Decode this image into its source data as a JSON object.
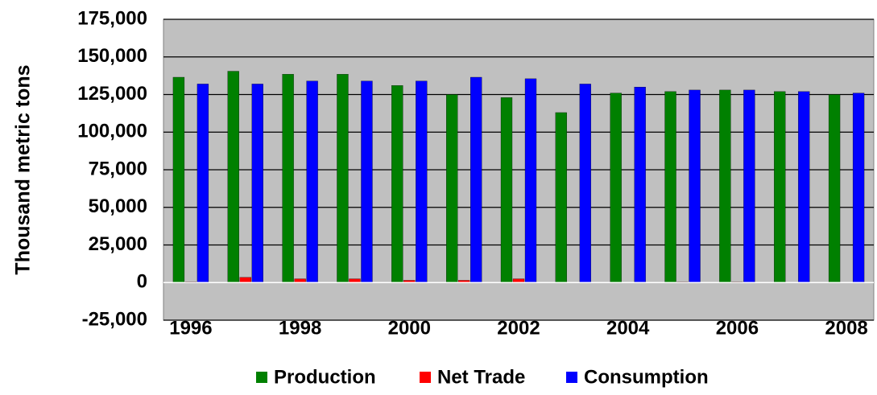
{
  "chart_data": {
    "type": "bar",
    "y_label": "Thousand metric tons",
    "categories": [
      "1996",
      null,
      "1998",
      null,
      "2000",
      null,
      "2002",
      null,
      "2004",
      null,
      "2006",
      null,
      "2008"
    ],
    "series": [
      {
        "name": "Production",
        "color": "#008000",
        "values": [
          136500,
          140500,
          138500,
          138500,
          131000,
          125000,
          123000,
          113000,
          126000,
          127000,
          128000,
          127000,
          125000
        ]
      },
      {
        "name": "Net Trade",
        "color": "#ff0000",
        "values": [
          500,
          3500,
          2500,
          2500,
          1500,
          1500,
          2500,
          0,
          0,
          500,
          500,
          0,
          0
        ]
      },
      {
        "name": "Consumption",
        "color": "#0000ff",
        "values": [
          132000,
          132000,
          134000,
          134000,
          134000,
          136500,
          135500,
          132000,
          130000,
          128000,
          128000,
          127000,
          126000
        ]
      }
    ],
    "ylim": [
      -25000,
      175000
    ],
    "yticks": [
      {
        "value": -25000,
        "label": "-25,000"
      },
      0,
      {
        "value": 25000,
        "label": "25,000"
      },
      {
        "value": 50000,
        "label": "50,000"
      },
      {
        "value": 75000,
        "label": "75,000"
      },
      {
        "value": 100000,
        "label": "100,000"
      },
      {
        "value": 125000,
        "label": "125,000"
      },
      {
        "value": 150000,
        "label": "150,000"
      },
      {
        "value": 175000,
        "label": "175,000"
      }
    ],
    "grid": true,
    "legend": "bottom"
  }
}
